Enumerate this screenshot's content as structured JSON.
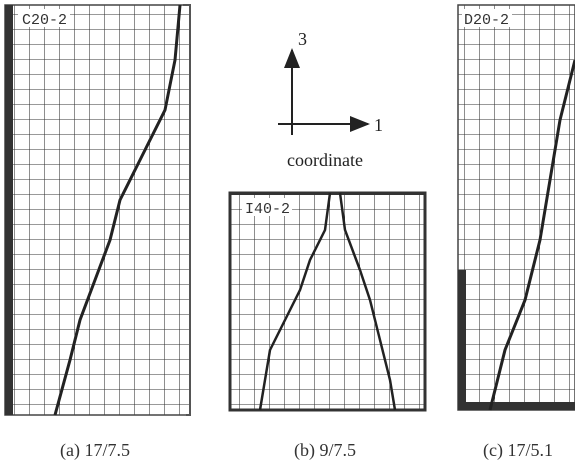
{
  "figure": {
    "coordinate": {
      "axis_vertical": "3",
      "axis_horizontal": "1",
      "label": "coordinate"
    },
    "panels": [
      {
        "specimen": "C20-2",
        "caption": "(a) 17/7.5"
      },
      {
        "specimen": "I40-2",
        "caption": "(b) 9/7.5"
      },
      {
        "specimen": "D20-2",
        "caption": "(c) 17/5.1"
      }
    ]
  }
}
